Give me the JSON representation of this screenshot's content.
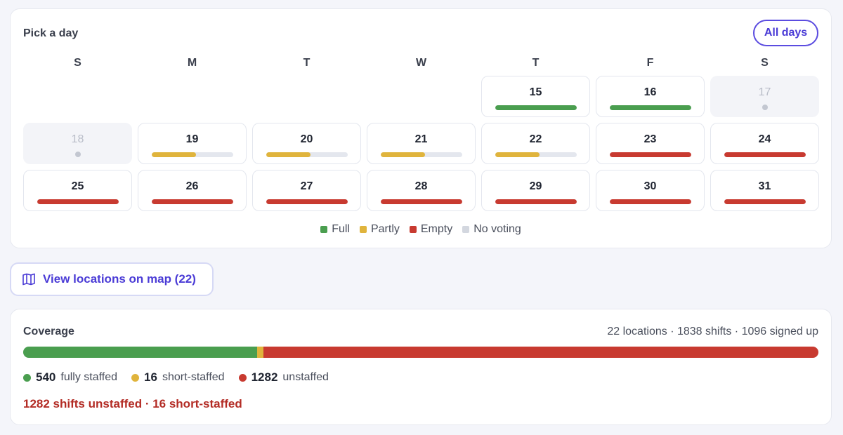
{
  "calendar": {
    "title": "Pick a day",
    "all_days_label": "All days",
    "weekdays": [
      "S",
      "M",
      "T",
      "W",
      "T",
      "F",
      "S"
    ],
    "days": [
      {
        "num": "15",
        "status": "full",
        "fill": 1.0
      },
      {
        "num": "16",
        "status": "full",
        "fill": 1.0
      },
      {
        "num": "17",
        "status": "none",
        "fill": 0
      },
      {
        "num": "18",
        "status": "none",
        "fill": 0
      },
      {
        "num": "19",
        "status": "partly",
        "fill": 0.54
      },
      {
        "num": "20",
        "status": "partly",
        "fill": 0.54
      },
      {
        "num": "21",
        "status": "partly",
        "fill": 0.54
      },
      {
        "num": "22",
        "status": "partly",
        "fill": 0.54
      },
      {
        "num": "23",
        "status": "empty",
        "fill": 1.0
      },
      {
        "num": "24",
        "status": "empty",
        "fill": 1.0
      },
      {
        "num": "25",
        "status": "empty",
        "fill": 1.0
      },
      {
        "num": "26",
        "status": "empty",
        "fill": 1.0
      },
      {
        "num": "27",
        "status": "empty",
        "fill": 1.0
      },
      {
        "num": "28",
        "status": "empty",
        "fill": 1.0
      },
      {
        "num": "29",
        "status": "empty",
        "fill": 1.0
      },
      {
        "num": "30",
        "status": "empty",
        "fill": 1.0
      },
      {
        "num": "31",
        "status": "empty",
        "fill": 1.0
      }
    ],
    "legend": [
      {
        "label": "Full",
        "color": "#4a9e4f"
      },
      {
        "label": "Partly",
        "color": "#e0b43c"
      },
      {
        "label": "Empty",
        "color": "#c83a30"
      },
      {
        "label": "No voting",
        "color": "#d3d7df"
      }
    ]
  },
  "map_button": {
    "label": "View locations on map (22)",
    "icon": "map-icon"
  },
  "coverage": {
    "title": "Coverage",
    "summary": "22 locations · 1838 shifts · 1096 signed up",
    "segments": [
      {
        "key": "full",
        "value": 540,
        "color": "#4a9e4f"
      },
      {
        "key": "short",
        "value": 16,
        "color": "#e0b43c"
      },
      {
        "key": "unstaffed",
        "value": 1282,
        "color": "#c83a30"
      }
    ],
    "legend": [
      {
        "count": "540",
        "label": "fully staffed",
        "color": "#4a9e4f"
      },
      {
        "count": "16",
        "label": "short-staffed",
        "color": "#e0b43c"
      },
      {
        "count": "1282",
        "label": "unstaffed",
        "color": "#c83a30"
      }
    ],
    "alert": "1282 shifts unstaffed · 16 short-staffed"
  },
  "colors": {
    "full": "#4a9e4f",
    "partly": "#e0b43c",
    "empty": "#c83a30",
    "none": "#d3d7df",
    "accent": "#4a3bd6"
  }
}
